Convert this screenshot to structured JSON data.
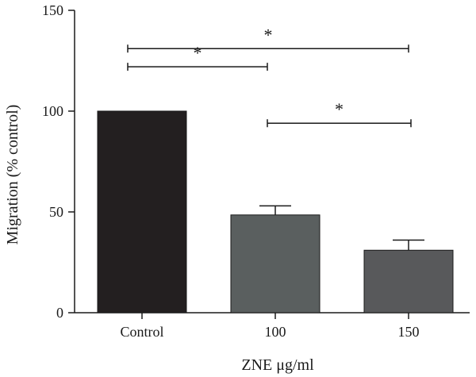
{
  "chart_data": {
    "type": "bar",
    "categories": [
      "Control",
      "100",
      "150"
    ],
    "values": [
      100,
      48.5,
      31
    ],
    "errors": [
      0,
      4.5,
      5
    ],
    "bar_colors": [
      "#231f20",
      "#5a5f5f",
      "#58595b"
    ],
    "title": "",
    "xlabel": "ZNE μg/ml",
    "ylabel": "Migration (% control)",
    "ylim": [
      0,
      150
    ],
    "yticks": [
      0,
      50,
      100,
      150
    ],
    "grid": false,
    "significance": [
      {
        "from": 0,
        "to": 2,
        "y": 131,
        "label": "*"
      },
      {
        "from": 0,
        "to": 1,
        "y": 122,
        "label": "*"
      },
      {
        "from": 1,
        "to": 2,
        "y": 94,
        "label": "*"
      }
    ]
  }
}
